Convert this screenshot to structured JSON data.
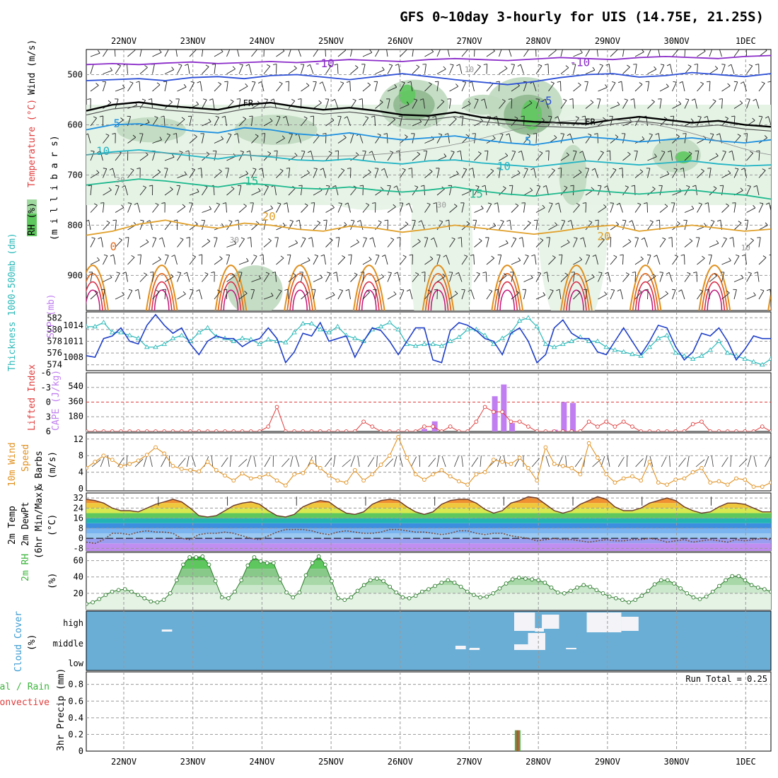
{
  "title": "GFS 0~10day 3-hourly for UIS (14.75E, 21.25S)",
  "dates": [
    "22NOV",
    "23NOV",
    "24NOV",
    "25NOV",
    "26NOV",
    "27NOV",
    "28NOV",
    "29NOV",
    "30NOV",
    "1DEC"
  ],
  "colors": {
    "rh_light": "#e5f3e5",
    "rh_mid": "#bfd9bf",
    "rh_dark": "#8fb88f",
    "rh_green": "#5ec85e",
    "slp": "#1f3fc8",
    "thickness": "#2ab8b8",
    "lifted": "#e03c3c",
    "cape": "#c07ef0",
    "wind": "#e0901e",
    "cloud": "#6aaed6",
    "rain": "#3cb43c",
    "convective": "#e03c3c"
  },
  "chart_data": [
    {
      "type": "line",
      "panel": "upper-air",
      "ylabel_parts": [
        "RH (%)",
        "Temperature (°C)",
        "Wind (m/s)",
        "(m i l l i b a r s)"
      ],
      "yticks": [
        500,
        600,
        700,
        800,
        900
      ],
      "ylim": [
        970,
        450
      ],
      "contour_labels": [
        "-10",
        "-10",
        "-5",
        "FR",
        "FR",
        "5",
        "5",
        "10",
        "10",
        "15",
        "15",
        "20",
        "20",
        "0",
        "30",
        "30",
        "30",
        "10",
        "10"
      ],
      "series": [
        {
          "name": "-10",
          "values": [
            480,
            478,
            480,
            477,
            475,
            478,
            476,
            474,
            476,
            473,
            470,
            472,
            474,
            470,
            468,
            470,
            472,
            469,
            466,
            468,
            470,
            466,
            464,
            466,
            468,
            464,
            462
          ]
        },
        {
          "name": "-5",
          "values": [
            512,
            510,
            508,
            512,
            506,
            504,
            508,
            502,
            500,
            505,
            510,
            504,
            498,
            504,
            510,
            515,
            520,
            514,
            506,
            500,
            498,
            505,
            502,
            496,
            500,
            504,
            498
          ]
        },
        {
          "name": "FR",
          "values": [
            572,
            560,
            555,
            562,
            566,
            570,
            560,
            556,
            564,
            570,
            566,
            572,
            580,
            582,
            575,
            585,
            590,
            594,
            596,
            598,
            590,
            584,
            590,
            596,
            592,
            600,
            604
          ]
        },
        {
          "name": "5",
          "values": [
            610,
            600,
            598,
            604,
            612,
            616,
            606,
            610,
            618,
            622,
            616,
            624,
            630,
            626,
            622,
            630,
            636,
            640,
            632,
            624,
            628,
            634,
            630,
            626,
            632,
            636,
            630
          ]
        },
        {
          "name": "10",
          "values": [
            660,
            654,
            650,
            656,
            662,
            668,
            660,
            664,
            670,
            672,
            668,
            674,
            678,
            672,
            670,
            676,
            680,
            684,
            678,
            672,
            676,
            680,
            676,
            672,
            678,
            682,
            680
          ]
        },
        {
          "name": "15",
          "values": [
            720,
            714,
            708,
            712,
            718,
            724,
            716,
            720,
            726,
            728,
            724,
            730,
            734,
            730,
            724,
            732,
            738,
            742,
            736,
            730,
            734,
            738,
            734,
            730,
            736,
            740,
            748
          ]
        },
        {
          "name": "20",
          "values": [
            820,
            812,
            798,
            790,
            800,
            806,
            796,
            800,
            808,
            812,
            802,
            806,
            814,
            808,
            800,
            806,
            812,
            818,
            812,
            804,
            800,
            812,
            806,
            800,
            806,
            812,
            808
          ]
        }
      ]
    },
    {
      "type": "line",
      "panel": "thickness-slp",
      "ylabel_parts": [
        "Thickness 1000-500mb (dm)",
        "SLP (mb)"
      ],
      "yticks_left": [
        582,
        580,
        578,
        576,
        574
      ],
      "yticks_right": [
        1014,
        1011,
        1008
      ],
      "series": [
        {
          "name": "SLP",
          "values": [
            1008.3,
            1008.0,
            1011.5,
            1012.0,
            1013.5,
            1011.0,
            1010.5,
            1014.0,
            1016.0,
            1014.0,
            1012.5,
            1013.5,
            1010.5,
            1008.5,
            1011.0,
            1012.0,
            1011.5,
            1011.5,
            1010.0,
            1011.0,
            1011.5,
            1013.5,
            1011.5,
            1007.0,
            1009.0,
            1012.5,
            1012.0,
            1014.5,
            1011.0,
            1011.5,
            1012.0,
            1008.0,
            1011.0,
            1013.5,
            1013.0,
            1011.0,
            1008.5,
            1011.0,
            1013.5,
            1013.5,
            1007.5,
            1007.0,
            1013.0,
            1014.5,
            1014.0,
            1013.0,
            1011.5,
            1011.0,
            1008.5,
            1012.5,
            1013.5,
            1011.0,
            1007.0,
            1008.5,
            1013.5,
            1015.0,
            1012.5,
            1011.5,
            1011.5,
            1009.0,
            1008.5,
            1011.0,
            1013.5,
            1011.0,
            1008.5,
            1011.0,
            1014.0,
            1013.5,
            1010.0,
            1007.5,
            1009.0,
            1012.5,
            1012.0,
            1013.5,
            1011.0,
            1007.5,
            1009.5,
            1012.0,
            1011.5,
            1011.5
          ]
        },
        {
          "name": "Thickness",
          "values": [
            580.5,
            580.5,
            581.2,
            579.5,
            579.5,
            579.0,
            578.5,
            577.0,
            577.0,
            577.5,
            578.5,
            579.0,
            578.0,
            579.5,
            580.3,
            578.8,
            578.5,
            578.0,
            578.5,
            578.3,
            577.5,
            578.3,
            578.0,
            577.8,
            579.5,
            581.0,
            581.0,
            580.0,
            579.5,
            580.5,
            579.0,
            578.5,
            578.0,
            580.0,
            580.5,
            581.2,
            580.0,
            577.5,
            577.2,
            577.5,
            577.5,
            577.2,
            578.0,
            578.7,
            580.0,
            580.0,
            579.0,
            577.5,
            578.5,
            579.5,
            581.5,
            582.0,
            580.5,
            577.5,
            577.0,
            577.5,
            578.0,
            578.7,
            578.0,
            578.0,
            577.0,
            576.5,
            576.2,
            575.8,
            575.5,
            577.0,
            578.5,
            579.0,
            576.0,
            575.5,
            575.0,
            575.5,
            576.5,
            578.0,
            576.0,
            575.5,
            575.0,
            574.5,
            574.0,
            575.0
          ]
        }
      ]
    },
    {
      "type": "bar",
      "panel": "cape-lifted",
      "ylabel_parts": [
        "Lifted Index",
        "CAPE (J/kg)"
      ],
      "yticks_left": [
        -6,
        -3,
        0,
        3,
        6
      ],
      "yticks_right": [
        540,
        360,
        180
      ],
      "cape_bars": [
        {
          "day": 4.35,
          "value": 30
        },
        {
          "day": 4.5,
          "value": 120
        },
        {
          "day": 5.37,
          "value": 420
        },
        {
          "day": 5.5,
          "value": 560
        },
        {
          "day": 5.62,
          "value": 100
        },
        {
          "day": 6.24,
          "value": 20
        },
        {
          "day": 6.37,
          "value": 350
        },
        {
          "day": 6.5,
          "value": 340
        }
      ],
      "lifted_index": [
        6,
        6,
        6,
        6,
        6,
        6,
        6,
        6,
        6,
        6,
        6,
        6,
        6,
        6,
        6,
        6,
        6,
        6,
        6,
        6,
        6,
        5,
        1,
        6,
        6,
        6,
        6,
        6,
        6,
        6,
        6,
        6,
        4,
        5,
        6,
        6,
        6,
        6,
        6,
        5,
        5,
        6,
        5,
        6,
        6,
        4,
        1,
        2,
        2,
        4,
        4,
        5,
        6,
        6,
        6,
        6,
        6,
        6,
        4,
        5,
        4,
        5,
        4,
        5,
        6,
        6,
        6,
        6,
        6,
        6,
        4.5,
        4,
        6,
        6,
        6,
        6,
        6,
        6,
        5,
        6
      ]
    },
    {
      "type": "line",
      "panel": "10m-wind",
      "ylabel_parts": [
        "10m Wind",
        "Speed",
        "& Barbs",
        "(m/s)"
      ],
      "yticks": [
        0,
        4,
        8,
        12
      ],
      "series": [
        {
          "name": "Speed",
          "values": [
            5,
            6.5,
            8,
            7,
            5.5,
            6,
            6.8,
            8.2,
            10,
            8.5,
            5.5,
            4.8,
            4.5,
            4.2,
            6.5,
            4.5,
            3.2,
            2,
            3.7,
            2.5,
            2.8,
            3.5,
            2,
            0.8,
            3.5,
            3.8,
            6.5,
            5,
            3.2,
            2,
            1.5,
            4.5,
            2,
            3.5,
            5.8,
            8,
            12.5,
            7.5,
            3.5,
            2.2,
            3.5,
            4.5,
            3,
            1.8,
            1,
            3.5,
            4,
            7,
            6.5,
            6,
            7.5,
            5,
            2,
            10,
            6,
            5.5,
            5,
            3.5,
            11,
            7.5,
            3.5,
            1.5,
            2.5,
            3,
            2,
            6.5,
            1.5,
            1,
            2.2,
            2.5,
            4,
            5,
            1.5,
            1.8,
            1,
            2.5,
            2.2,
            0.5,
            0.5,
            1.5
          ]
        }
      ]
    },
    {
      "type": "area",
      "panel": "2m-temp",
      "ylabel_parts": [
        "2m Temp",
        "2m DewPt",
        "(6hr Min/Max)",
        "(°C)"
      ],
      "yticks": [
        32,
        24,
        16,
        8,
        0,
        -8
      ],
      "series": [
        {
          "name": "Temp",
          "values": [
            31,
            30,
            28,
            24,
            22,
            22,
            21,
            24,
            27,
            29,
            31,
            29,
            24,
            18,
            17,
            18,
            22,
            26,
            28,
            29,
            27,
            22,
            18,
            17,
            19,
            25,
            28,
            30,
            29,
            24,
            20,
            19,
            21,
            27,
            30,
            31,
            30,
            25,
            21,
            19,
            21,
            27,
            30,
            31,
            31,
            28,
            23,
            20,
            22,
            28,
            30,
            33,
            32,
            27,
            22,
            20,
            22,
            27,
            30,
            33,
            31,
            25,
            22,
            22,
            24,
            28,
            30,
            32,
            30,
            25,
            22,
            20,
            21,
            25,
            28,
            28,
            27,
            24,
            21,
            21
          ]
        },
        {
          "name": "DewPt",
          "values": [
            -3,
            -4,
            -1,
            4,
            4,
            3,
            5,
            6,
            5,
            5,
            4,
            0,
            -1,
            3,
            4,
            4,
            5,
            4,
            2,
            0,
            -1,
            2,
            5,
            7,
            7,
            7,
            6,
            4,
            3,
            5,
            6,
            5,
            4,
            4,
            5,
            7,
            7,
            6,
            5,
            5,
            4,
            3,
            4,
            6,
            6,
            4,
            3,
            4,
            4,
            2,
            1,
            0,
            -2,
            -1,
            0,
            -1,
            -1,
            -2,
            -3,
            -2,
            -1,
            -2,
            -2,
            -1,
            -1,
            0,
            -1,
            -3,
            -2,
            -1,
            -3,
            -2,
            -1,
            -2,
            -3,
            -1,
            -2,
            -1,
            0,
            -1
          ]
        }
      ]
    },
    {
      "type": "area",
      "panel": "2m-rh",
      "ylabel_parts": [
        "2m RH",
        "(%)"
      ],
      "yticks": [
        20,
        40,
        60
      ],
      "series": [
        {
          "name": "RH",
          "values": [
            7,
            9,
            13,
            18,
            22,
            24,
            25,
            22,
            18,
            14,
            10,
            9,
            12,
            20,
            36,
            55,
            64,
            64,
            65,
            55,
            35,
            15,
            14,
            22,
            36,
            54,
            64,
            59,
            57,
            57,
            37,
            21,
            15,
            21,
            42,
            57,
            65,
            55,
            35,
            14,
            12,
            15,
            23,
            30,
            36,
            38,
            35,
            28,
            21,
            15,
            14,
            17,
            22,
            25,
            29,
            33,
            36,
            33,
            28,
            22,
            18,
            15,
            16,
            20,
            26,
            32,
            37,
            39,
            38,
            37,
            36,
            33,
            27,
            21,
            20,
            23,
            27,
            30,
            28,
            24,
            20,
            16,
            14,
            12,
            9,
            12,
            17,
            23,
            31,
            36,
            36,
            32,
            26,
            20,
            15,
            13,
            16,
            22,
            29,
            36,
            41,
            41,
            36,
            30,
            27,
            25,
            22
          ]
        }
      ]
    },
    {
      "type": "heatmap",
      "panel": "cloud-cover",
      "ylabel_parts": [
        "Cloud Cover",
        "(%)"
      ],
      "levels": [
        "high",
        "middle",
        "low"
      ]
    },
    {
      "type": "bar",
      "panel": "3hr-precip",
      "ylabel_parts": [
        "Total / Rain",
        "Convective",
        "3hr Precip (mm)"
      ],
      "yticks": [
        0,
        0.2,
        0.4,
        0.6,
        0.8
      ],
      "run_total": "Run Total = 0.25",
      "bars": [
        {
          "day": 5.7,
          "total": 0.25,
          "convective": 0.25
        }
      ]
    }
  ]
}
